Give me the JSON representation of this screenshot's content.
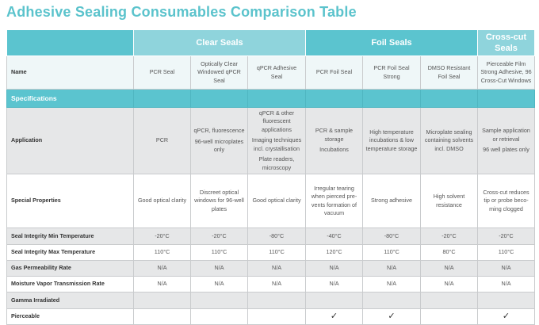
{
  "title": "Adhesive Sealing Consumables Comparison Table",
  "groups": [
    {
      "label": "",
      "span": 1,
      "cls": "g0"
    },
    {
      "label": "Clear Seals",
      "span": 3,
      "cls": "g-clear"
    },
    {
      "label": "Foil Seals",
      "span": 3,
      "cls": "g-foil"
    },
    {
      "label": "Cross-cut Seals",
      "span": 1,
      "cls": "g-cross"
    }
  ],
  "rows": [
    {
      "label": "Name",
      "style": "name",
      "cells": [
        [
          "PCR Seal"
        ],
        [
          "Optically Clear Windowed qPCR Seal"
        ],
        [
          "qPCR Adhesive Seal"
        ],
        [
          "PCR Foil Seal"
        ],
        [
          "PCR Foil Seal Strong"
        ],
        [
          "DMSO Resistant Foil Seal"
        ],
        [
          "Pierceable Film Strong Adhesive, 96 Cross-Cut Windows"
        ]
      ]
    },
    {
      "label": "Specifications",
      "style": "spec",
      "cells": [
        [],
        [],
        [],
        [],
        [],
        [],
        []
      ]
    },
    {
      "label": "Application",
      "style": "gray",
      "cells": [
        [
          "PCR"
        ],
        [
          "qPCR, fluorescence",
          "96-well microplates only"
        ],
        [
          "qPCR & other fluorescent applications",
          "Imaging techniques incl. crystallisation",
          "Plate readers, microscopy"
        ],
        [
          "PCR & sample storage",
          "Incubations"
        ],
        [
          "High temperature incubations & low temperature storage"
        ],
        [
          "Microplate sealing containing solvents incl. DMSO"
        ],
        [
          "Sample application or retrieval",
          "96 well plates only"
        ]
      ]
    },
    {
      "label": "Special Properties",
      "style": "white",
      "cells": [
        [
          "Good optical clarity"
        ],
        [
          "Discreet optical windows for 96-well plates"
        ],
        [
          "Good optical clarity"
        ],
        [
          "Irregular tearing when pierced pre-vents formation of vacuum"
        ],
        [
          "Strong adhesive"
        ],
        [
          "High solvent resistance"
        ],
        [
          "Cross-cut reduces tip or probe beco-ming clogged"
        ]
      ]
    },
    {
      "label": "Seal Integrity Min Temperature",
      "style": "gray",
      "cells": [
        [
          "-20°C"
        ],
        [
          "-20°C"
        ],
        [
          "-80°C"
        ],
        [
          "-40°C"
        ],
        [
          "-80°C"
        ],
        [
          "-20°C"
        ],
        [
          "-20°C"
        ]
      ]
    },
    {
      "label": "Seal Integrity Max Temperature",
      "style": "white",
      "cells": [
        [
          "110°C"
        ],
        [
          "110°C"
        ],
        [
          "110°C"
        ],
        [
          "120°C"
        ],
        [
          "110°C"
        ],
        [
          "80°C"
        ],
        [
          "110°C"
        ]
      ]
    },
    {
      "label": "Gas Permeability Rate",
      "style": "gray",
      "cells": [
        [
          "N/A"
        ],
        [
          "N/A"
        ],
        [
          "N/A"
        ],
        [
          "N/A"
        ],
        [
          "N/A"
        ],
        [
          "N/A"
        ],
        [
          "N/A"
        ]
      ]
    },
    {
      "label": "Moisture Vapor Transmission Rate",
      "style": "white",
      "cells": [
        [
          "N/A"
        ],
        [
          "N/A"
        ],
        [
          "N/A"
        ],
        [
          "N/A"
        ],
        [
          "N/A"
        ],
        [
          "N/A"
        ],
        [
          "N/A"
        ]
      ]
    },
    {
      "label": "Gamma Irradiated",
      "style": "gray",
      "cells": [
        [],
        [],
        [],
        [],
        [],
        [],
        []
      ]
    },
    {
      "label": "Pierceable",
      "style": "white",
      "cells": [
        [],
        [],
        [],
        [
          "✓"
        ],
        [
          "✓"
        ],
        [],
        [
          "✓"
        ]
      ]
    }
  ]
}
